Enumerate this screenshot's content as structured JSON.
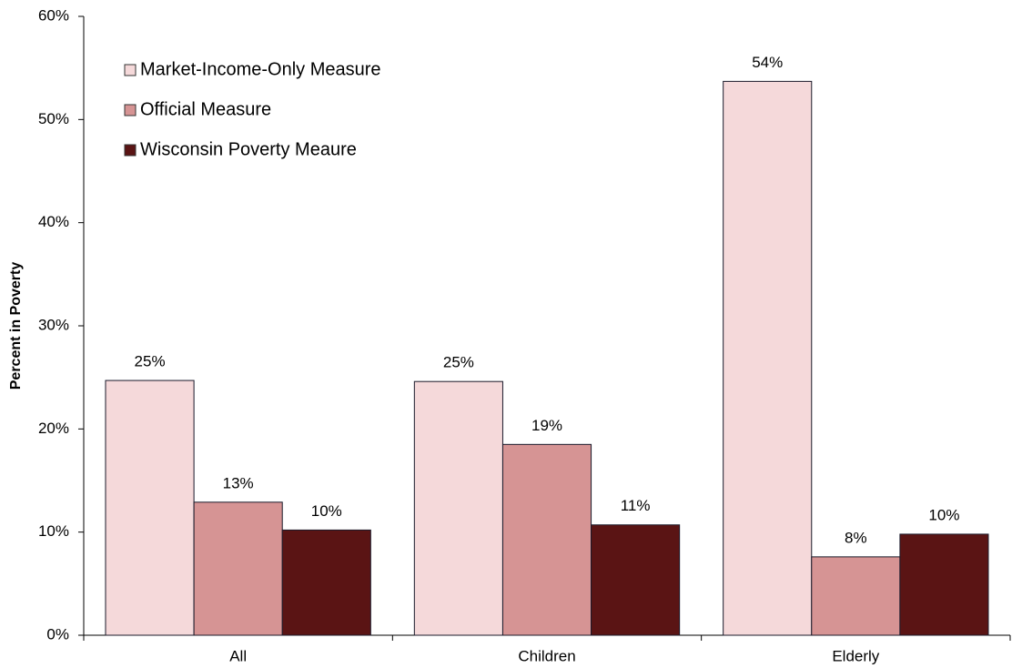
{
  "chart_data": {
    "type": "bar",
    "y_label": "Percent in Poverty",
    "categories": [
      "All",
      "Children",
      "Elderly"
    ],
    "series": [
      {
        "name": "Market-Income-Only Measure",
        "color": "#f5d9da",
        "values": [
          24.7,
          24.6,
          53.7
        ],
        "value_labels": [
          "25%",
          "25%",
          "54%"
        ]
      },
      {
        "name": "Official Measure",
        "color": "#d69494",
        "values": [
          12.9,
          18.5,
          7.6
        ],
        "value_labels": [
          "13%",
          "19%",
          "8%"
        ]
      },
      {
        "name": "Wisconsin Poverty Meaure",
        "color": "#5a1414",
        "values": [
          10.2,
          10.7,
          9.8
        ],
        "value_labels": [
          "10%",
          "11%",
          "10%"
        ]
      }
    ],
    "ylim": [
      0,
      60
    ],
    "yticks": [
      {
        "value": 0,
        "label": "0%"
      },
      {
        "value": 10,
        "label": "10%"
      },
      {
        "value": 20,
        "label": "20%"
      },
      {
        "value": 30,
        "label": "30%"
      },
      {
        "value": 40,
        "label": "40%"
      },
      {
        "value": 50,
        "label": "50%"
      },
      {
        "value": 60,
        "label": "60%"
      }
    ],
    "legend": "upper left",
    "grid": false
  }
}
